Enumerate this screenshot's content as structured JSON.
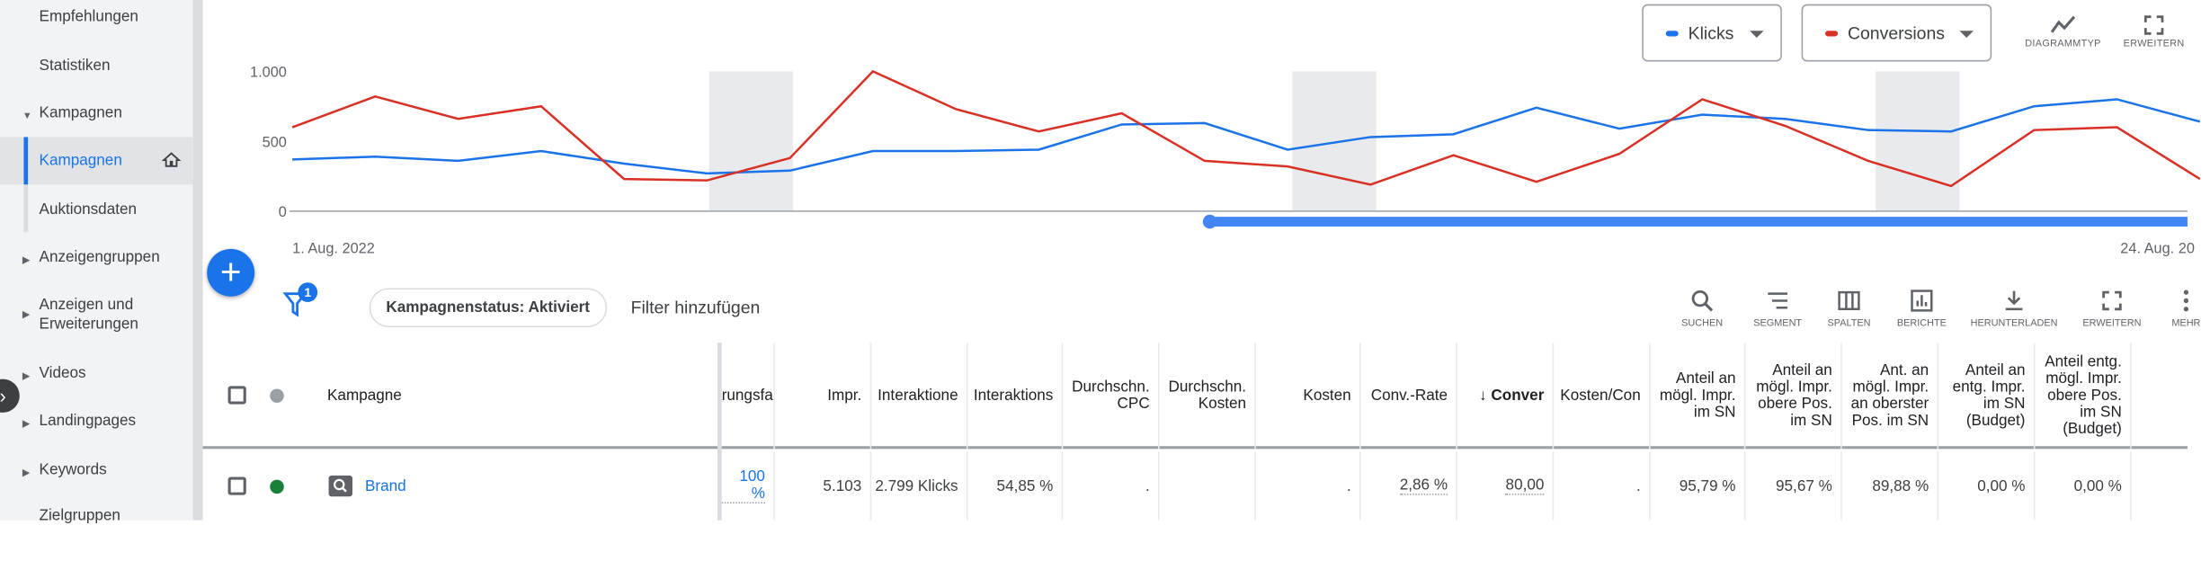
{
  "sidebar": {
    "items": [
      {
        "label": "Empfehlungen"
      },
      {
        "label": "Statistiken"
      },
      {
        "label": "Kampagnen"
      },
      {
        "label": "Kampagnen"
      },
      {
        "label": "Auktionsdaten"
      },
      {
        "label": "Anzeigengruppen"
      },
      {
        "label": "Anzeigen und Erweiterungen"
      },
      {
        "label": "Videos"
      },
      {
        "label": "Landingpages"
      },
      {
        "label": "Keywords"
      },
      {
        "label": "Zielgruppen"
      }
    ]
  },
  "chart": {
    "metric1": "Klicks",
    "metric2": "Conversions",
    "tools": [
      "DIAGRAMMTYP",
      "ERWEITERN"
    ],
    "colors": {
      "klicks": "#1a73e8",
      "conversions": "#d93025",
      "weekend": "#e8eaed"
    }
  },
  "chart_data": {
    "type": "line",
    "yticks": [
      "1.000",
      "500",
      "0"
    ],
    "ylim": [
      0,
      1000
    ],
    "x_start_label": "1. Aug. 2022",
    "x_end_label": "24. Aug. 20",
    "series": [
      {
        "name": "Klicks",
        "color": "#1a73e8",
        "values": [
          370,
          390,
          360,
          430,
          340,
          270,
          290,
          430,
          430,
          440,
          620,
          630,
          440,
          530,
          550,
          740,
          590,
          690,
          660,
          580,
          570,
          750,
          800,
          640
        ]
      },
      {
        "name": "Conversions",
        "color": "#d93025",
        "values": [
          600,
          820,
          660,
          750,
          230,
          220,
          380,
          1000,
          730,
          570,
          700,
          360,
          320,
          190,
          400,
          210,
          410,
          800,
          610,
          360,
          180,
          580,
          600,
          230
        ]
      }
    ]
  },
  "toolbar": {
    "fab": "+",
    "filter_count": "1",
    "status_chip": "Kampagnenstatus: Aktiviert",
    "add_filter": "Filter hinzufügen",
    "buttons": [
      "SUCHEN",
      "SEGMENT",
      "SPALTEN",
      "BERICHTE",
      "HERUNTERLADEN",
      "ERWEITERN",
      "MEHR"
    ]
  },
  "table": {
    "headers": {
      "kampagne": "Kampagne",
      "cols": [
        "rungsfa",
        "Impr.",
        "Interaktione",
        "Interaktions",
        "Durchschn. CPC",
        "Durchschn. Kosten",
        "Kosten",
        "Conv.-Rate",
        "Conver",
        "Kosten/Con",
        "Anteil an mögl. Impr. im SN",
        "Anteil an mögl. Impr. obere Pos. im SN",
        "Ant. an mögl. Impr. an oberster Pos. im SN",
        "Anteil an entg. Impr. im SN (Budget)",
        "Anteil entg. mögl. Impr. obere Pos. im SN (Budget)"
      ]
    },
    "row": {
      "name": "Brand",
      "cells": [
        "100 %",
        "5.103",
        "2.799 Klicks",
        "54,85 %",
        ".",
        "",
        ".",
        "2,86 %",
        "80,00",
        ".",
        "95,79 %",
        "95,67 %",
        "89,88 %",
        "0,00 %",
        "0,00 %"
      ]
    }
  }
}
